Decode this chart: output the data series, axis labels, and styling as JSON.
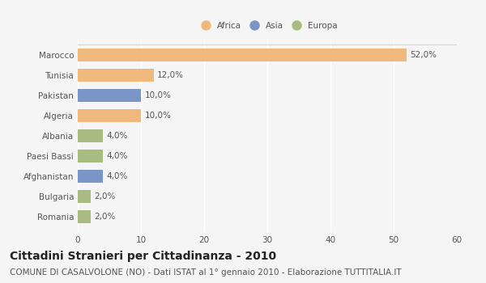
{
  "countries": [
    "Marocco",
    "Tunisia",
    "Pakistan",
    "Algeria",
    "Albania",
    "Paesi Bassi",
    "Afghanistan",
    "Bulgaria",
    "Romania"
  ],
  "values": [
    52.0,
    12.0,
    10.0,
    10.0,
    4.0,
    4.0,
    4.0,
    2.0,
    2.0
  ],
  "colors": [
    "#f0b87c",
    "#f0b87c",
    "#7a96c8",
    "#f0b87c",
    "#a8bc82",
    "#a8bc82",
    "#7a96c8",
    "#a8bc82",
    "#a8bc82"
  ],
  "labels": [
    "52,0%",
    "12,0%",
    "10,0%",
    "10,0%",
    "4,0%",
    "4,0%",
    "4,0%",
    "2,0%",
    "2,0%"
  ],
  "legend": [
    {
      "label": "Africa",
      "color": "#f0b87c"
    },
    {
      "label": "Asia",
      "color": "#7a96c8"
    },
    {
      "label": "Europa",
      "color": "#a8bc82"
    }
  ],
  "xlim": [
    0,
    60
  ],
  "xticks": [
    0,
    10,
    20,
    30,
    40,
    50,
    60
  ],
  "title": "Cittadini Stranieri per Cittadinanza - 2010",
  "subtitle": "COMUNE DI CASALVOLONE (NO) - Dati ISTAT al 1° gennaio 2010 - Elaborazione TUTTITALIA.IT",
  "background_color": "#f5f5f5",
  "bar_edge_color": "none",
  "grid_color": "#ffffff",
  "text_color": "#555555",
  "title_color": "#222222",
  "subtitle_color": "#555555",
  "title_fontsize": 10,
  "subtitle_fontsize": 7.5,
  "label_fontsize": 7.5,
  "tick_fontsize": 7.5,
  "bar_height": 0.65
}
